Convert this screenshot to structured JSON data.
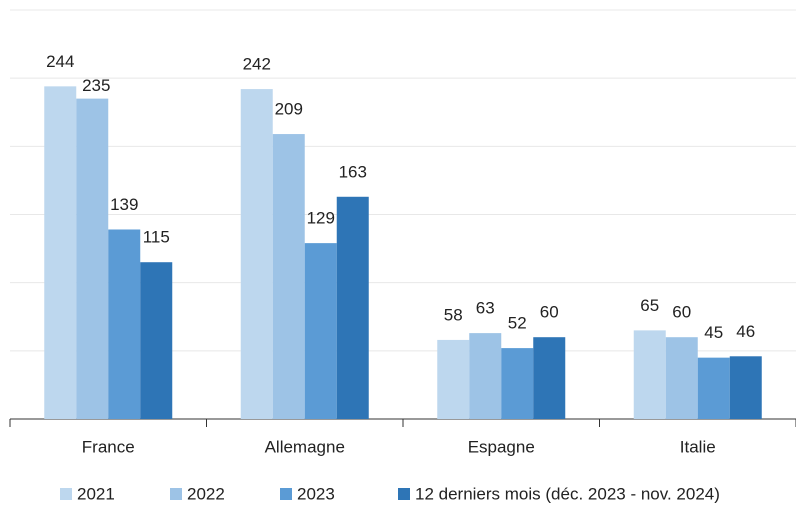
{
  "chart_data": {
    "type": "bar",
    "categories": [
      "France",
      "Allemagne",
      "Espagne",
      "Italie"
    ],
    "series": [
      {
        "name": "2021",
        "color": "#bdd7ee",
        "values": [
          244,
          242,
          58,
          65
        ]
      },
      {
        "name": "2022",
        "color": "#9dc3e6",
        "values": [
          235,
          209,
          63,
          60
        ]
      },
      {
        "name": "2023",
        "color": "#5b9bd5",
        "values": [
          139,
          129,
          52,
          45
        ]
      },
      {
        "name": "12 derniers mois (déc. 2023 - nov. 2024)",
        "color": "#2e75b6",
        "values": [
          115,
          163,
          60,
          46
        ]
      }
    ],
    "ylim": [
      0,
      300
    ],
    "yticks": [
      0,
      50,
      100,
      150,
      200,
      250,
      300
    ],
    "grid": true
  }
}
